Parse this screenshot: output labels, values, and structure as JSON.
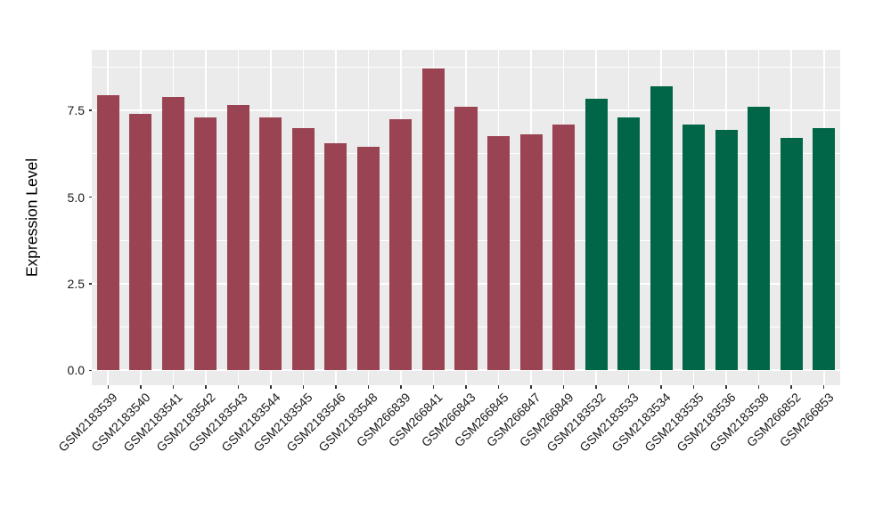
{
  "chart_data": {
    "type": "bar",
    "title": "",
    "xlabel": "",
    "ylabel": "Expression Level",
    "categories": [
      "GSM2183539",
      "GSM2183540",
      "GSM2183541",
      "GSM2183542",
      "GSM2183543",
      "GSM2183544",
      "GSM2183545",
      "GSM2183546",
      "GSM2183548",
      "GSM266839",
      "GSM266841",
      "GSM266843",
      "GSM266845",
      "GSM266847",
      "GSM266849",
      "GSM2183532",
      "GSM2183533",
      "GSM2183534",
      "GSM2183535",
      "GSM2183536",
      "GSM2183538",
      "GSM266852",
      "GSM266853"
    ],
    "values": [
      7.95,
      7.4,
      7.9,
      7.3,
      7.65,
      7.3,
      7.0,
      6.55,
      6.45,
      7.25,
      8.7,
      7.6,
      6.75,
      6.8,
      7.1,
      7.85,
      7.3,
      8.2,
      7.1,
      6.95,
      7.6,
      6.7,
      7.0
    ],
    "bar_groups": [
      "maroon",
      "maroon",
      "maroon",
      "maroon",
      "maroon",
      "maroon",
      "maroon",
      "maroon",
      "maroon",
      "maroon",
      "maroon",
      "maroon",
      "maroon",
      "maroon",
      "maroon",
      "green",
      "green",
      "green",
      "green",
      "green",
      "green",
      "green",
      "green"
    ],
    "group_colors": {
      "maroon": "#9A4352",
      "green": "#006647"
    },
    "yticks": [
      0,
      2.5,
      5,
      7.5
    ],
    "ytick_labels": [
      "0.0",
      "2.5",
      "5.0",
      "7.5"
    ],
    "minor_yticks": [
      1.25,
      3.75,
      6.25,
      8.75
    ],
    "ylim": [
      -0.43,
      9.25
    ],
    "grid": "on",
    "legend": "none",
    "panel_bg": "#EBEBEB",
    "grid_color": "#FFFFFF",
    "axis_text_color": "#1A1A1A",
    "tick_color": "#333333",
    "bar_width_ratio": 0.685
  }
}
